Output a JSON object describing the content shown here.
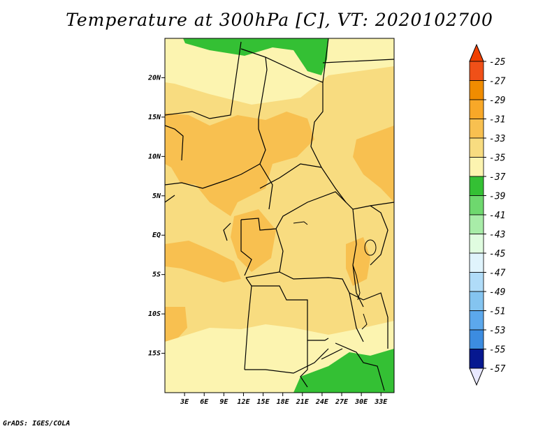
{
  "title": "Temperature at 300hPa [C], VT: 2020102700",
  "credit": "GrADS: IGES/COLA",
  "map": {
    "lon_range": [
      0,
      35
    ],
    "lat_range": [
      -20,
      25
    ],
    "y_ticks": [
      "20N",
      "15N",
      "10N",
      "5N",
      "EQ",
      "5S",
      "10S",
      "15S"
    ],
    "x_ticks": [
      "3E",
      "6E",
      "9E",
      "12E",
      "15E",
      "18E",
      "21E",
      "24E",
      "27E",
      "30E",
      "33E"
    ]
  },
  "colorbar": {
    "labels": [
      "-25",
      "-27",
      "-29",
      "-31",
      "-33",
      "-35",
      "-37",
      "-39",
      "-41",
      "-43",
      "-45",
      "-47",
      "-49",
      "-51",
      "-53",
      "-55",
      "-57"
    ],
    "colors": [
      "#f05018",
      "#f08c00",
      "#f8a828",
      "#f8c050",
      "#f8dc80",
      "#fcf4b0",
      "#34c034",
      "#6ed86e",
      "#a8eca8",
      "#e0fce0",
      "#e0f4fc",
      "#b0dcf8",
      "#84c4f0",
      "#5ca8ec",
      "#3c8ce0",
      "#1e64d8",
      "#0a46b8",
      "#061890"
    ],
    "top_color": "#f04000",
    "bottom_color": "#e8e8ff"
  }
}
